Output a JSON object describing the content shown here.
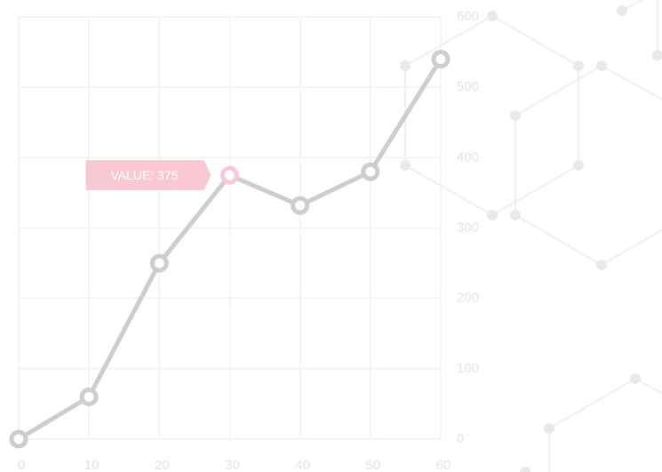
{
  "chart_data": {
    "type": "line",
    "x": [
      0,
      10,
      20,
      30,
      40,
      50,
      60
    ],
    "series": [
      {
        "color": "#cbcecd",
        "highlight_color": "#f8c9d2",
        "values": [
          0,
          60,
          250,
          375,
          332,
          380,
          540
        ],
        "value_labels": [
          null,
          null,
          null,
          "VALUE: 375",
          null,
          null,
          null
        ]
      }
    ],
    "xlim": [
      0,
      60
    ],
    "xticks": [
      0,
      10,
      20,
      30,
      40,
      50,
      60
    ],
    "ylim": [
      0,
      600
    ],
    "yticks": [
      0,
      100,
      200,
      300,
      400,
      500,
      600
    ],
    "grid": true
  }
}
